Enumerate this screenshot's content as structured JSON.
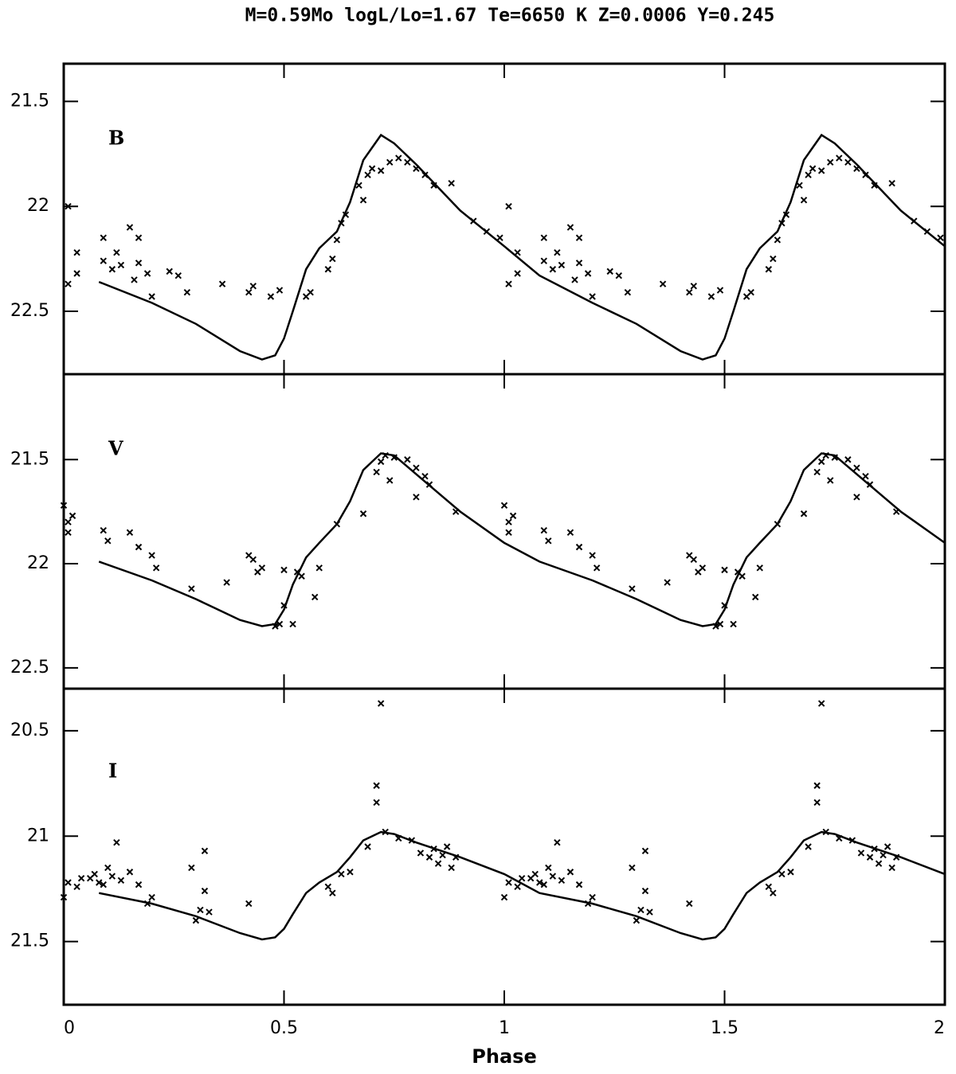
{
  "chart_data": [
    {
      "type": "scatter",
      "title": "M=0.59Mo logL/Lo=1.67 Te=6650 K Z=0.0006 Y=0.245",
      "label": "B",
      "color": "#000000",
      "xlim": [
        0,
        2
      ],
      "xticks": [
        0,
        0.5,
        1,
        1.5,
        2
      ],
      "ylim": [
        22.8,
        21.32
      ],
      "yticks": [
        21.5,
        22,
        22.5
      ],
      "x": [
        0.01,
        0.01,
        0.03,
        0.03,
        0.09,
        0.09,
        0.11,
        0.12,
        0.13,
        0.15,
        0.16,
        0.17,
        0.17,
        0.19,
        0.2,
        0.24,
        0.26,
        0.28,
        0.36,
        0.42,
        0.43,
        0.47,
        0.49,
        0.55,
        0.56,
        0.6,
        0.61,
        0.62,
        0.63,
        0.64,
        0.67,
        0.68,
        0.69,
        0.7,
        0.72,
        0.74,
        0.76,
        0.78,
        0.8,
        0.82,
        0.84,
        0.88,
        0.93,
        0.96,
        0.99,
        1.01,
        1.01,
        1.03,
        1.03,
        1.09,
        1.09,
        1.11,
        1.12,
        1.13,
        1.15,
        1.16,
        1.17,
        1.17,
        1.19,
        1.2,
        1.24,
        1.26,
        1.28,
        1.36,
        1.42,
        1.43,
        1.47,
        1.49,
        1.55,
        1.56,
        1.6,
        1.61,
        1.62,
        1.63,
        1.64,
        1.67,
        1.68,
        1.69,
        1.7,
        1.72,
        1.74,
        1.76,
        1.78,
        1.8,
        1.82,
        1.84,
        1.88,
        1.93,
        1.96,
        1.99
      ],
      "values": [
        22.0,
        22.37,
        22.22,
        22.32,
        22.15,
        22.26,
        22.3,
        22.22,
        22.28,
        22.1,
        22.35,
        22.15,
        22.27,
        22.32,
        22.43,
        22.31,
        22.33,
        22.41,
        22.37,
        22.41,
        22.38,
        22.43,
        22.4,
        22.43,
        22.41,
        22.3,
        22.25,
        22.16,
        22.08,
        22.04,
        21.9,
        21.97,
        21.85,
        21.82,
        21.83,
        21.79,
        21.77,
        21.79,
        21.82,
        21.85,
        21.9,
        21.89,
        22.07,
        22.12,
        22.15,
        22.0,
        22.37,
        22.22,
        22.32,
        22.15,
        22.26,
        22.3,
        22.22,
        22.28,
        22.1,
        22.35,
        22.15,
        22.27,
        22.32,
        22.43,
        22.31,
        22.33,
        22.41,
        22.37,
        22.41,
        22.38,
        22.43,
        22.4,
        22.43,
        22.41,
        22.3,
        22.25,
        22.16,
        22.08,
        22.04,
        21.9,
        21.97,
        21.85,
        21.82,
        21.83,
        21.79,
        21.77,
        21.79,
        21.82,
        21.85,
        21.9,
        21.89,
        22.07,
        22.12,
        22.15
      ],
      "model": {
        "x": [
          0.08,
          0.2,
          0.3,
          0.4,
          0.45,
          0.48,
          0.5,
          0.52,
          0.55,
          0.58,
          0.62,
          0.65,
          0.68,
          0.72,
          0.75,
          0.8,
          0.9,
          1.0,
          1.08,
          1.2,
          1.3,
          1.4,
          1.45,
          1.48,
          1.5,
          1.52,
          1.55,
          1.58,
          1.62,
          1.65,
          1.68,
          1.72,
          1.75,
          1.8,
          1.9,
          2.0
        ],
        "values": [
          22.36,
          22.46,
          22.56,
          22.69,
          22.73,
          22.71,
          22.63,
          22.5,
          22.3,
          22.2,
          22.12,
          21.98,
          21.78,
          21.66,
          21.7,
          21.8,
          22.02,
          22.19,
          22.33,
          22.46,
          22.56,
          22.69,
          22.73,
          22.71,
          22.63,
          22.5,
          22.3,
          22.2,
          22.12,
          21.98,
          21.78,
          21.66,
          21.7,
          21.8,
          22.02,
          22.19
        ]
      }
    },
    {
      "type": "scatter",
      "label": "V",
      "color": "#000000",
      "xlim": [
        0,
        2
      ],
      "xticks": [
        0,
        0.5,
        1,
        1.5,
        2
      ],
      "ylim": [
        22.6,
        21.09
      ],
      "yticks": [
        21.5,
        22,
        22.5
      ],
      "x": [
        0.0,
        0.01,
        0.01,
        0.02,
        0.09,
        0.1,
        0.15,
        0.17,
        0.2,
        0.21,
        0.29,
        0.37,
        0.42,
        0.43,
        0.44,
        0.45,
        0.48,
        0.49,
        0.5,
        0.5,
        0.52,
        0.53,
        0.54,
        0.57,
        0.58,
        0.62,
        0.68,
        0.71,
        0.72,
        0.73,
        0.74,
        0.75,
        0.78,
        0.8,
        0.8,
        0.82,
        0.83,
        0.89,
        1.0,
        1.01,
        1.01,
        1.02,
        1.09,
        1.1,
        1.15,
        1.17,
        1.2,
        1.21,
        1.29,
        1.37,
        1.42,
        1.43,
        1.44,
        1.45,
        1.48,
        1.49,
        1.5,
        1.5,
        1.52,
        1.53,
        1.54,
        1.57,
        1.58,
        1.62,
        1.68,
        1.71,
        1.72,
        1.73,
        1.74,
        1.75,
        1.78,
        1.8,
        1.8,
        1.82,
        1.83,
        1.89
      ],
      "values": [
        21.72,
        21.85,
        21.8,
        21.77,
        21.84,
        21.89,
        21.85,
        21.92,
        21.96,
        22.02,
        22.12,
        22.09,
        21.96,
        21.98,
        22.04,
        22.02,
        22.3,
        22.29,
        22.2,
        22.03,
        22.29,
        22.04,
        22.06,
        22.16,
        22.02,
        21.81,
        21.76,
        21.56,
        21.51,
        21.48,
        21.6,
        21.49,
        21.5,
        21.54,
        21.68,
        21.58,
        21.62,
        21.75,
        21.72,
        21.85,
        21.8,
        21.77,
        21.84,
        21.89,
        21.85,
        21.92,
        21.96,
        22.02,
        22.12,
        22.09,
        21.96,
        21.98,
        22.04,
        22.02,
        22.3,
        22.29,
        22.2,
        22.03,
        22.29,
        22.04,
        22.06,
        22.16,
        22.02,
        21.81,
        21.76,
        21.56,
        21.51,
        21.48,
        21.6,
        21.49,
        21.5,
        21.54,
        21.68,
        21.58,
        21.62,
        21.75
      ],
      "model": {
        "x": [
          0.08,
          0.2,
          0.3,
          0.4,
          0.45,
          0.48,
          0.5,
          0.52,
          0.55,
          0.58,
          0.62,
          0.65,
          0.68,
          0.72,
          0.75,
          0.8,
          0.9,
          1.0,
          1.08,
          1.2,
          1.3,
          1.4,
          1.45,
          1.48,
          1.5,
          1.52,
          1.55,
          1.58,
          1.62,
          1.65,
          1.68,
          1.72,
          1.75,
          1.8,
          1.9,
          2.0
        ],
        "values": [
          21.99,
          22.08,
          22.17,
          22.27,
          22.3,
          22.29,
          22.22,
          22.1,
          21.97,
          21.9,
          21.81,
          21.7,
          21.55,
          21.47,
          21.48,
          21.57,
          21.75,
          21.9,
          21.99,
          22.08,
          22.17,
          22.27,
          22.3,
          22.29,
          22.22,
          22.1,
          21.97,
          21.9,
          21.81,
          21.7,
          21.55,
          21.47,
          21.48,
          21.57,
          21.75,
          21.9
        ]
      }
    },
    {
      "type": "scatter",
      "label": "I",
      "color": "#000000",
      "xlabel": "Phase",
      "xlim": [
        0,
        2
      ],
      "xticks": [
        0,
        0.5,
        1,
        1.5,
        2
      ],
      "ylim": [
        21.8,
        20.3
      ],
      "yticks": [
        20.5,
        21,
        21.5
      ],
      "x": [
        0.0,
        0.01,
        0.03,
        0.04,
        0.06,
        0.07,
        0.08,
        0.09,
        0.1,
        0.11,
        0.12,
        0.13,
        0.15,
        0.17,
        0.19,
        0.2,
        0.29,
        0.3,
        0.31,
        0.32,
        0.32,
        0.33,
        0.42,
        0.6,
        0.61,
        0.63,
        0.65,
        0.69,
        0.71,
        0.71,
        0.72,
        0.73,
        0.76,
        0.79,
        0.81,
        0.83,
        0.84,
        0.85,
        0.86,
        0.87,
        0.88,
        0.89,
        1.0,
        1.01,
        1.03,
        1.04,
        1.06,
        1.07,
        1.08,
        1.09,
        1.1,
        1.11,
        1.12,
        1.13,
        1.15,
        1.17,
        1.19,
        1.2,
        1.29,
        1.3,
        1.31,
        1.32,
        1.32,
        1.33,
        1.42,
        1.6,
        1.61,
        1.63,
        1.65,
        1.69,
        1.71,
        1.71,
        1.72,
        1.73,
        1.76,
        1.79,
        1.81,
        1.83,
        1.84,
        1.85,
        1.86,
        1.87,
        1.88,
        1.89
      ],
      "values": [
        21.29,
        21.22,
        21.24,
        21.2,
        21.2,
        21.18,
        21.22,
        21.23,
        21.15,
        21.19,
        21.03,
        21.21,
        21.17,
        21.23,
        21.32,
        21.29,
        21.15,
        21.4,
        21.35,
        21.07,
        21.26,
        21.36,
        21.32,
        21.24,
        21.27,
        21.18,
        21.17,
        21.05,
        20.84,
        20.76,
        20.37,
        20.98,
        21.01,
        21.02,
        21.08,
        21.1,
        21.06,
        21.13,
        21.09,
        21.05,
        21.15,
        21.1,
        21.29,
        21.22,
        21.24,
        21.2,
        21.2,
        21.18,
        21.22,
        21.23,
        21.15,
        21.19,
        21.03,
        21.21,
        21.17,
        21.23,
        21.32,
        21.29,
        21.15,
        21.4,
        21.35,
        21.07,
        21.26,
        21.36,
        21.32,
        21.24,
        21.27,
        21.18,
        21.17,
        21.05,
        20.84,
        20.76,
        20.37,
        20.98,
        21.01,
        21.02,
        21.08,
        21.1,
        21.06,
        21.13,
        21.09,
        21.05,
        21.15,
        21.1
      ],
      "model": {
        "x": [
          0.08,
          0.2,
          0.3,
          0.4,
          0.45,
          0.48,
          0.5,
          0.52,
          0.55,
          0.58,
          0.62,
          0.65,
          0.68,
          0.72,
          0.75,
          0.8,
          0.9,
          1.0,
          1.08,
          1.2,
          1.3,
          1.4,
          1.45,
          1.48,
          1.5,
          1.52,
          1.55,
          1.58,
          1.62,
          1.65,
          1.68,
          1.72,
          1.75,
          1.8,
          1.9,
          2.0
        ],
        "values": [
          21.27,
          21.32,
          21.38,
          21.46,
          21.49,
          21.48,
          21.44,
          21.37,
          21.27,
          21.22,
          21.17,
          21.1,
          21.02,
          20.98,
          20.99,
          21.03,
          21.1,
          21.18,
          21.27,
          21.32,
          21.38,
          21.46,
          21.49,
          21.48,
          21.44,
          21.37,
          21.27,
          21.22,
          21.17,
          21.1,
          21.02,
          20.98,
          20.99,
          21.03,
          21.1,
          21.18
        ]
      }
    }
  ]
}
